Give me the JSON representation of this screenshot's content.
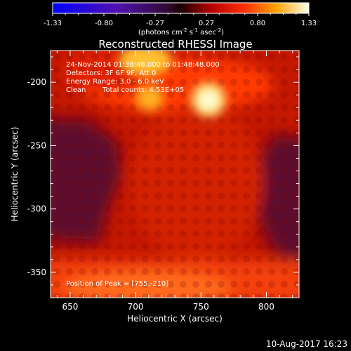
{
  "chart_data": {
    "type": "heatmap",
    "title": "Reconstructed RHESSI Image",
    "xlabel": "Heliocentric X (arcsec)",
    "ylabel": "Heliocentric Y (arcsec)",
    "xlim": [
      635,
      825
    ],
    "ylim": [
      -370,
      -175
    ],
    "xticks": [
      650,
      700,
      750,
      800
    ],
    "yticks": [
      -200,
      -250,
      -300,
      -350
    ],
    "colorbar": {
      "range": [
        -1.33,
        1.33
      ],
      "ticks": [
        "-1.33",
        "-0.80",
        "-0.27",
        "0.27",
        "0.80",
        "1.33"
      ],
      "label_pre": "(photons cm",
      "label_sup1": "-2",
      "label_mid": " s",
      "label_sup2": "-1",
      "label_mid2": " asec",
      "label_sup3": "-2",
      "label_post": ")"
    },
    "annotations": {
      "time_range": "24-Nov-2014 01:38:48.000 to 01:48:48.000",
      "detectors": "Detectors: 3F 6F 9F, Att 0",
      "energy": "Energy Range: 3.0 - 6.0 keV",
      "method": "Clean",
      "counts": "Total counts: 4.53E+05",
      "peak": "Position of Peak = [755,-210]"
    },
    "peak_position": [
      755,
      -210
    ],
    "sources": [
      {
        "x": 755,
        "y": -210,
        "intensity": 1.33
      },
      {
        "x": 711,
        "y": -213,
        "intensity": 1.0
      },
      {
        "x": 710,
        "y": -185,
        "intensity": 1.1
      }
    ],
    "footer_date": "10-Aug-2017 16:23"
  }
}
